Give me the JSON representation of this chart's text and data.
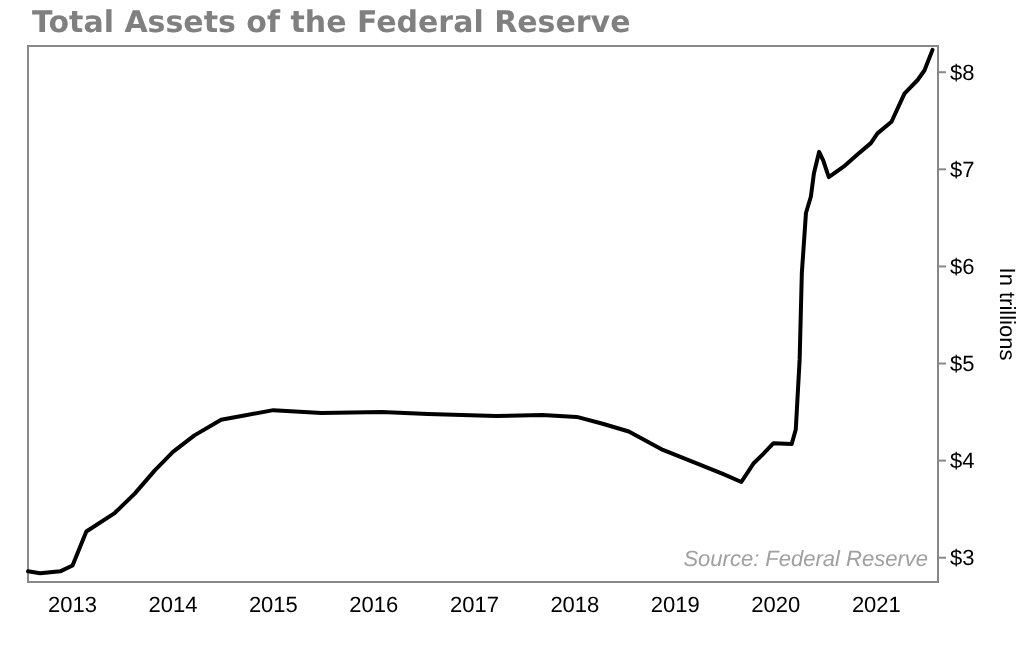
{
  "chart_data": {
    "type": "line",
    "title": "Total Assets of the Federal Reserve",
    "ylabel": "In trillions",
    "annotations": [
      "Source: Federal Reserve"
    ],
    "xlim": [
      "2012-07-23",
      "2021-08-13"
    ],
    "ylim": [
      2.75,
      8.27
    ],
    "xticks": [
      {
        "value": "2013",
        "label": "2013"
      },
      {
        "value": "2014",
        "label": "2014"
      },
      {
        "value": "2015",
        "label": "2015"
      },
      {
        "value": "2016",
        "label": "2016"
      },
      {
        "value": "2017",
        "label": "2017"
      },
      {
        "value": "2018",
        "label": "2018"
      },
      {
        "value": "2019",
        "label": "2019"
      },
      {
        "value": "2020",
        "label": "2020"
      },
      {
        "value": "2021",
        "label": "2021"
      }
    ],
    "yticks": [
      {
        "value": 3,
        "label": "$3"
      },
      {
        "value": 4,
        "label": "$4"
      },
      {
        "value": 5,
        "label": "$5"
      },
      {
        "value": 6,
        "label": "$6"
      },
      {
        "value": 7,
        "label": "$7"
      },
      {
        "value": 8,
        "label": "$8"
      }
    ],
    "marker": "none",
    "line_style": "solid",
    "x": [
      "2012-07-23",
      "2012-09-05",
      "2012-11-17",
      "2013-01-01",
      "2013-02-20",
      "2013-06-03",
      "2013-08-15",
      "2013-10-27",
      "2014-01-01",
      "2014-03-20",
      "2014-06-25",
      "2014-09-27",
      "2015-01-01",
      "2015-06-25",
      "2016-01-30",
      "2016-07-16",
      "2017-03-20",
      "2017-09-05",
      "2018-01-08",
      "2018-04-12",
      "2018-07-16",
      "2018-11-17",
      "2019-03-22",
      "2019-06-25",
      "2019-08-29",
      "2019-10-12",
      "2019-11-17",
      "2019-12-24",
      "2020-02-28",
      "2020-03-14",
      "2020-03-28",
      "2020-04-05",
      "2020-04-20",
      "2020-05-08",
      "2020-05-19",
      "2020-06-07",
      "2020-06-22",
      "2020-07-12",
      "2020-09-05",
      "2020-10-23",
      "2020-12-12",
      "2021-01-05",
      "2021-02-25",
      "2021-04-13",
      "2021-05-31",
      "2021-06-25",
      "2021-07-24"
    ],
    "series": [
      {
        "color": "#000000",
        "values": [
          2.86,
          2.84,
          2.86,
          2.92,
          3.27,
          3.46,
          3.66,
          3.9,
          4.09,
          4.26,
          4.42,
          4.47,
          4.52,
          4.49,
          4.5,
          4.48,
          4.46,
          4.47,
          4.45,
          4.38,
          4.3,
          4.11,
          3.97,
          3.86,
          3.78,
          3.97,
          4.07,
          4.18,
          4.17,
          4.32,
          5.04,
          5.93,
          6.55,
          6.72,
          6.96,
          7.18,
          7.09,
          6.92,
          7.03,
          7.15,
          7.27,
          7.37,
          7.49,
          7.78,
          7.92,
          8.02,
          8.23
        ]
      }
    ]
  }
}
